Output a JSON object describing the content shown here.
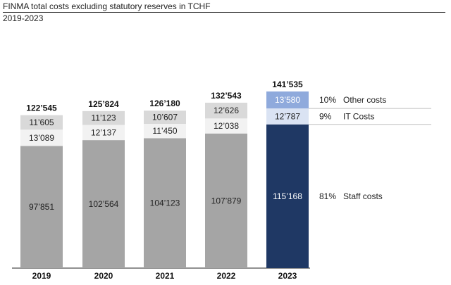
{
  "chart_data": {
    "type": "bar",
    "stacked": true,
    "title": "FINMA total costs excluding statutory reserves in TCHF",
    "subtitle": "2019-2023",
    "categories": [
      "2019",
      "2020",
      "2021",
      "2022",
      "2023"
    ],
    "totals": [
      122545,
      125824,
      126180,
      132543,
      141535
    ],
    "total_labels": [
      "122’545",
      "125’824",
      "126’180",
      "132’543",
      "141’535"
    ],
    "series": [
      {
        "name": "Staff costs",
        "values": [
          97851,
          102564,
          104123,
          107879,
          115168
        ],
        "labels": [
          "97’851",
          "102’564",
          "104’123",
          "107’879",
          "115’168"
        ],
        "share": "81%",
        "color": "#a5a5a5",
        "highlight_color": "#1f3864"
      },
      {
        "name": "IT Costs",
        "values": [
          13089,
          12137,
          11450,
          12038,
          12787
        ],
        "labels": [
          "13’089",
          "12’137",
          "11’450",
          "12’038",
          "12’787"
        ],
        "share": "9%",
        "color": "#f2f2f2",
        "highlight_color": "#dae3f3"
      },
      {
        "name": "Other costs",
        "values": [
          11605,
          11123,
          10607,
          12626,
          13580
        ],
        "labels": [
          "11’605",
          "11’123",
          "10’607",
          "12’626",
          "13’580"
        ],
        "share": "10%",
        "color": "#d9d9d9",
        "highlight_color": "#8faadc"
      }
    ],
    "highlight_category": "2023",
    "ylim": [
      0,
      141535
    ],
    "grid": false,
    "legend_placement": "right"
  }
}
